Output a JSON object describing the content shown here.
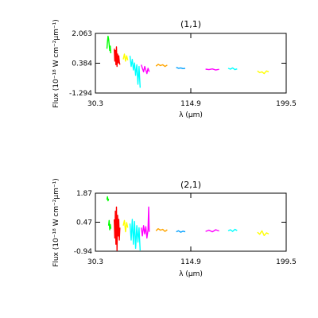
{
  "chart_data": [
    {
      "type": "line",
      "title": "(1,1)",
      "xlabel": "λ (μm)",
      "ylabel": "Flux (10⁻¹⁸ W cm⁻²μm⁻¹)",
      "xlim": [
        30.3,
        199.5
      ],
      "ylim": [
        -1.294,
        2.063
      ],
      "xticks": [
        "30.3",
        "114.9",
        "199.5"
      ],
      "yticks": [
        "-1.294",
        "0.384",
        "2.063"
      ],
      "grid": false,
      "series": [
        {
          "color": "#00ff00",
          "x": [
            40.5,
            41.0,
            41.5,
            42.0,
            42.5,
            43.0,
            43.5,
            44.0
          ],
          "y": [
            1.2,
            1.6,
            1.9,
            1.75,
            1.45,
            1.1,
            1.35,
            0.95
          ]
        },
        {
          "color": "#ff0000",
          "x": [
            47.0,
            47.5,
            48.0,
            48.5,
            49.0,
            49.5,
            50.0,
            50.5,
            51.0,
            51.5,
            52.0
          ],
          "y": [
            1.2,
            0.5,
            1.1,
            0.3,
            1.3,
            0.2,
            0.9,
            0.4,
            0.8,
            0.45,
            0.3
          ]
        },
        {
          "color": "#ffff00",
          "x": [
            55.0,
            56.0,
            57.0,
            58.0,
            59.0
          ],
          "y": [
            0.6,
            0.9,
            0.5,
            0.8,
            0.55
          ]
        },
        {
          "color": "#00ffff",
          "x": [
            61.0,
            62.0,
            63.0,
            64.0,
            65.0,
            66.0,
            67.0,
            68.0,
            69.0,
            70.0
          ],
          "y": [
            0.8,
            0.2,
            0.6,
            0.0,
            0.4,
            -0.3,
            0.3,
            -0.8,
            0.2,
            -1.0
          ]
        },
        {
          "color": "#ff00ff",
          "x": [
            71.0,
            72.0,
            73.0,
            74.0,
            75.0,
            76.0,
            77.0,
            78.0
          ],
          "y": [
            0.3,
            0.1,
            -0.1,
            0.2,
            0.0,
            -0.2,
            0.1,
            -0.1
          ]
        },
        {
          "color": "#ffa500",
          "x": [
            84.0,
            86.0,
            88.0,
            90.0,
            92.0,
            94.0
          ],
          "y": [
            0.22,
            0.32,
            0.25,
            0.3,
            0.2,
            0.28
          ]
        },
        {
          "color": "#00a0ff",
          "x": [
            102.0,
            104.0,
            106.0,
            108.0,
            110.0
          ],
          "y": [
            0.15,
            0.1,
            0.12,
            0.08,
            0.1
          ]
        },
        {
          "color": "#ff00ff",
          "x": [
            128.0,
            131.0,
            134.0,
            137.0,
            140.0
          ],
          "y": [
            0.05,
            0.02,
            0.06,
            0.0,
            0.04
          ]
        },
        {
          "color": "#00ffff",
          "x": [
            148.0,
            150.0,
            152.0,
            154.0,
            156.0
          ],
          "y": [
            0.1,
            0.05,
            0.12,
            0.02,
            0.06
          ]
        },
        {
          "color": "#ffff00",
          "x": [
            174.0,
            176.0,
            178.0,
            180.0,
            182.0,
            184.0
          ],
          "y": [
            -0.05,
            -0.15,
            -0.1,
            -0.2,
            -0.05,
            -0.1
          ]
        }
      ]
    },
    {
      "type": "line",
      "title": "(2,1)",
      "xlabel": "λ (μm)",
      "ylabel": "Flux (10⁻¹⁸ W cm⁻²μm⁻¹)",
      "xlim": [
        30.3,
        199.5
      ],
      "ylim": [
        -0.94,
        1.87
      ],
      "xticks": [
        "30.3",
        "114.9",
        "199.5"
      ],
      "yticks": [
        "-0.94",
        "0.47",
        "1.87"
      ],
      "grid": false,
      "series": [
        {
          "color": "#00ff00",
          "x": [
            40.5,
            41.0,
            41.5,
            42.0
          ],
          "y": [
            1.55,
            1.7,
            1.5,
            1.6
          ]
        },
        {
          "color": "#00ff00",
          "x": [
            42.0,
            42.5,
            43.0,
            43.5,
            44.0
          ],
          "y": [
            0.3,
            0.55,
            0.1,
            0.35,
            0.15
          ]
        },
        {
          "color": "#ff0000",
          "x": [
            47.0,
            47.5,
            48.0,
            48.5,
            49.0,
            49.5,
            50.0,
            50.5,
            51.0,
            51.5,
            52.0
          ],
          "y": [
            0.6,
            -0.3,
            1.0,
            -0.6,
            1.2,
            -0.9,
            0.8,
            -0.2,
            0.6,
            -0.4,
            0.2
          ]
        },
        {
          "color": "#ffff00",
          "x": [
            55.0,
            56.0,
            57.0,
            58.0,
            59.0
          ],
          "y": [
            0.3,
            0.55,
            0.0,
            0.45,
            0.2
          ]
        },
        {
          "color": "#00ffff",
          "x": [
            61.0,
            62.0,
            63.0,
            64.0,
            65.0,
            66.0,
            67.0,
            68.0,
            69.0,
            70.0
          ],
          "y": [
            0.4,
            -0.4,
            0.6,
            -0.6,
            0.5,
            -0.8,
            0.3,
            -0.5,
            0.2,
            -0.9
          ]
        },
        {
          "color": "#ff00ff",
          "x": [
            71.0,
            72.0,
            73.0,
            74.0,
            75.0,
            76.0,
            77.0,
            77.5,
            78.0
          ],
          "y": [
            0.2,
            -0.2,
            0.3,
            -0.1,
            0.25,
            -0.3,
            0.1,
            1.2,
            0.0
          ]
        },
        {
          "color": "#ffa500",
          "x": [
            84.0,
            86.0,
            88.0,
            90.0,
            92.0,
            94.0
          ],
          "y": [
            0.05,
            0.15,
            0.08,
            0.12,
            0.02,
            0.1
          ]
        },
        {
          "color": "#00a0ff",
          "x": [
            102.0,
            104.0,
            106.0,
            108.0,
            110.0
          ],
          "y": [
            0.0,
            0.05,
            -0.02,
            0.03,
            0.0
          ]
        },
        {
          "color": "#ff00ff",
          "x": [
            128.0,
            131.0,
            134.0,
            137.0,
            140.0
          ],
          "y": [
            0.02,
            0.08,
            0.0,
            0.1,
            0.04
          ]
        },
        {
          "color": "#00ffff",
          "x": [
            148.0,
            150.0,
            152.0,
            154.0,
            156.0
          ],
          "y": [
            0.05,
            0.1,
            0.02,
            0.12,
            0.06
          ]
        },
        {
          "color": "#ffff00",
          "x": [
            174.0,
            176.0,
            178.0,
            180.0,
            182.0,
            184.0
          ],
          "y": [
            -0.02,
            -0.12,
            0.05,
            -0.18,
            -0.05,
            -0.1
          ]
        }
      ]
    }
  ]
}
